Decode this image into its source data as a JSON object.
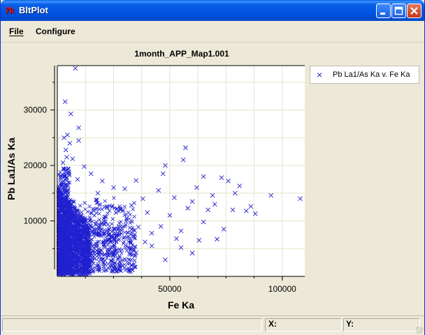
{
  "window": {
    "title": "BltPlot",
    "app_icon": "tk-feather-icon"
  },
  "menu": {
    "file": "File",
    "configure": "Configure"
  },
  "status": {
    "x_label": "X:",
    "y_label": "Y:"
  },
  "colors": {
    "marker": "#2020d0",
    "grid": "#e2e6c8"
  },
  "chart_data": {
    "type": "scatter",
    "title": "1month_APP_Map1.001",
    "xlabel": "Fe Ka",
    "ylabel": "Pb La1/As Ka",
    "xlim": [
      0,
      110000
    ],
    "ylim": [
      0,
      38000
    ],
    "x_ticks": [
      50000,
      100000
    ],
    "x_tick_labels": [
      "50000",
      "100000"
    ],
    "y_ticks": [
      10000,
      20000,
      30000
    ],
    "y_tick_labels": [
      "10000",
      "20000",
      "30000"
    ],
    "grid": true,
    "legend": "right",
    "marker": "x",
    "series": [
      {
        "name": "Pb La1/As Ka v. Fe Ka",
        "points": [
          [
            8000,
            37500
          ],
          [
            3500,
            31500
          ],
          [
            6000,
            29300
          ],
          [
            9500,
            26800
          ],
          [
            4500,
            25500
          ],
          [
            3000,
            25000
          ],
          [
            5500,
            24000
          ],
          [
            3800,
            22800
          ],
          [
            9500,
            24500
          ],
          [
            4200,
            21500
          ],
          [
            12000,
            19800
          ],
          [
            2500,
            20500
          ],
          [
            6800,
            21200
          ],
          [
            15000,
            18500
          ],
          [
            9000,
            17500
          ],
          [
            20000,
            17200
          ],
          [
            35000,
            17300
          ],
          [
            47000,
            18500
          ],
          [
            48000,
            20000
          ],
          [
            56000,
            21000
          ],
          [
            57000,
            23200
          ],
          [
            65000,
            18000
          ],
          [
            73000,
            17800
          ],
          [
            76000,
            17200
          ],
          [
            81000,
            16300
          ],
          [
            79000,
            15000
          ],
          [
            95000,
            14600
          ],
          [
            108000,
            14000
          ],
          [
            86000,
            12600
          ],
          [
            88000,
            11300
          ],
          [
            84000,
            11800
          ],
          [
            70000,
            13000
          ],
          [
            60000,
            13500
          ],
          [
            65000,
            9800
          ],
          [
            74000,
            8500
          ],
          [
            63000,
            6500
          ],
          [
            55000,
            5200
          ],
          [
            42000,
            5500
          ],
          [
            35000,
            4300
          ],
          [
            30000,
            3100
          ],
          [
            48000,
            3000
          ],
          [
            60000,
            4200
          ],
          [
            71000,
            6700
          ],
          [
            50000,
            11000
          ],
          [
            45000,
            15500
          ],
          [
            38000,
            14000
          ],
          [
            30000,
            15800
          ],
          [
            25000,
            16000
          ],
          [
            18000,
            15000
          ],
          [
            40000,
            11500
          ],
          [
            33000,
            12800
          ],
          [
            28000,
            12000
          ],
          [
            22000,
            12500
          ],
          [
            42000,
            7800
          ],
          [
            36000,
            8900
          ],
          [
            55000,
            8200
          ],
          [
            52000,
            14200
          ],
          [
            58000,
            12300
          ],
          [
            67000,
            12000
          ],
          [
            62000,
            16000
          ],
          [
            69000,
            14600
          ],
          [
            78000,
            12000
          ],
          [
            46000,
            9000
          ],
          [
            53000,
            6800
          ],
          [
            39000,
            6200
          ]
        ]
      }
    ]
  }
}
